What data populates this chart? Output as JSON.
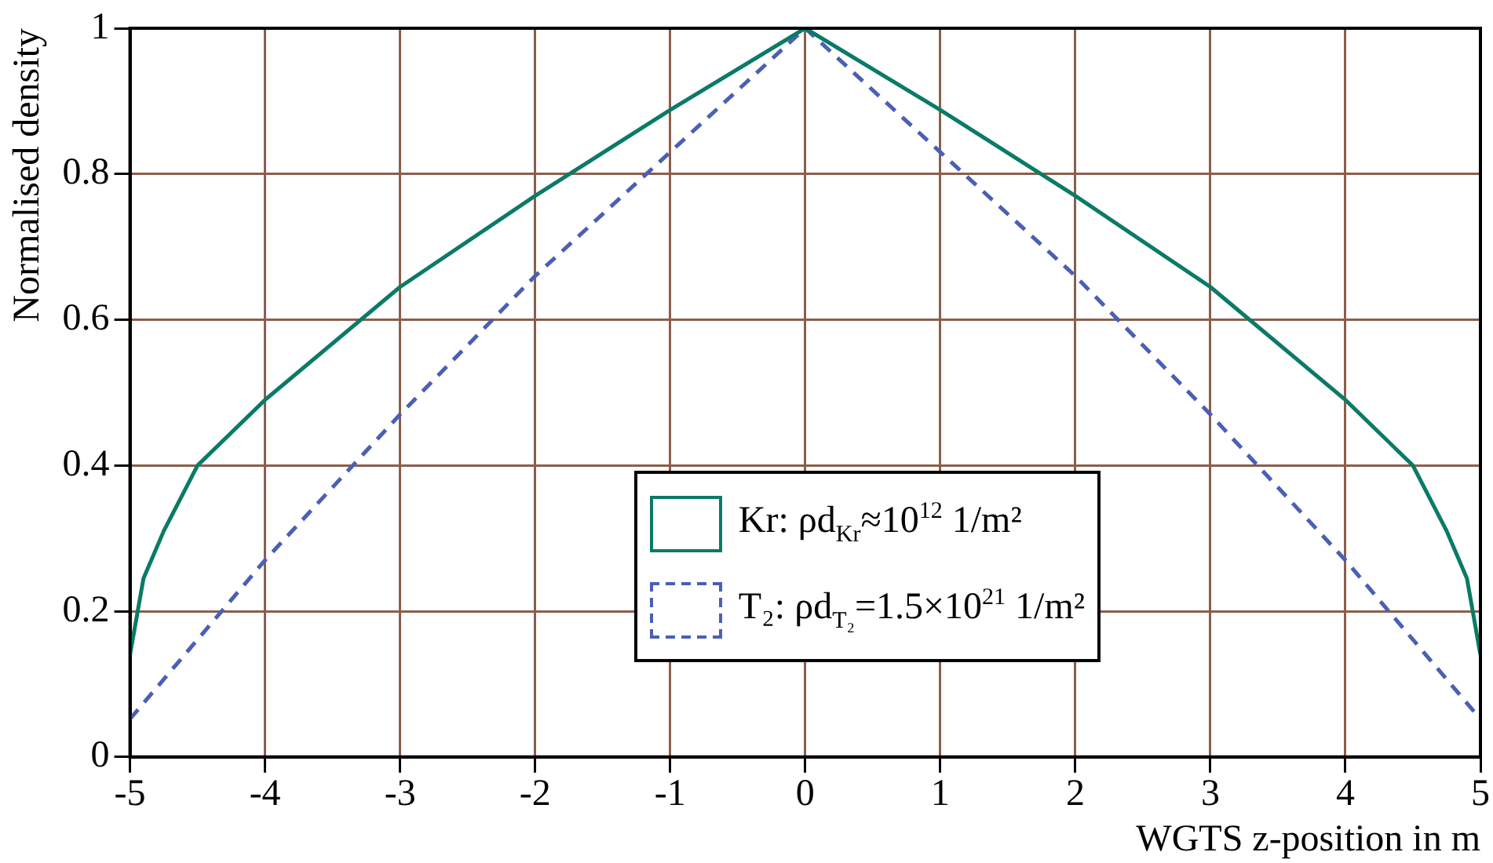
{
  "chart_data": {
    "type": "line",
    "xlabel": "WGTS z-position in m",
    "ylabel": "Normalised density",
    "xlim": [
      -5,
      5
    ],
    "xticks": [
      -5,
      -4,
      -3,
      -2,
      -1,
      0,
      1,
      2,
      3,
      4,
      5
    ],
    "ylim": [
      0,
      1
    ],
    "yticks": [
      0,
      0.2,
      0.4,
      0.6,
      0.8,
      1
    ],
    "grid": true,
    "legend": "bottom",
    "marker": "none",
    "series": [
      {
        "name": "Kr:  ρd$_{Kr}$≈10$^{12}$ 1/m²",
        "color": "#0b7a66",
        "line_style": "solid",
        "x": [
          -5,
          -4.9,
          -4.75,
          -4.5,
          -4,
          -3,
          -2,
          -1,
          0,
          1,
          2,
          3,
          4,
          4.5,
          4.75,
          4.9,
          5
        ],
        "values": [
          0.14,
          0.245,
          0.31,
          0.4,
          0.49,
          0.645,
          0.77,
          0.888,
          1,
          0.888,
          0.77,
          0.645,
          0.49,
          0.4,
          0.31,
          0.245,
          0.14
        ]
      },
      {
        "name": "T₂:  ρd$_{T₂}$=1.5×10$^{21}$ 1/m²",
        "color": "#4a5fb5",
        "line_style": "dashed",
        "x": [
          -5,
          -4,
          -3,
          -2,
          -1,
          0,
          1,
          2,
          3,
          4,
          5
        ],
        "values": [
          0.052,
          0.27,
          0.47,
          0.66,
          0.83,
          1,
          0.83,
          0.66,
          0.47,
          0.27,
          0.052
        ]
      }
    ]
  }
}
